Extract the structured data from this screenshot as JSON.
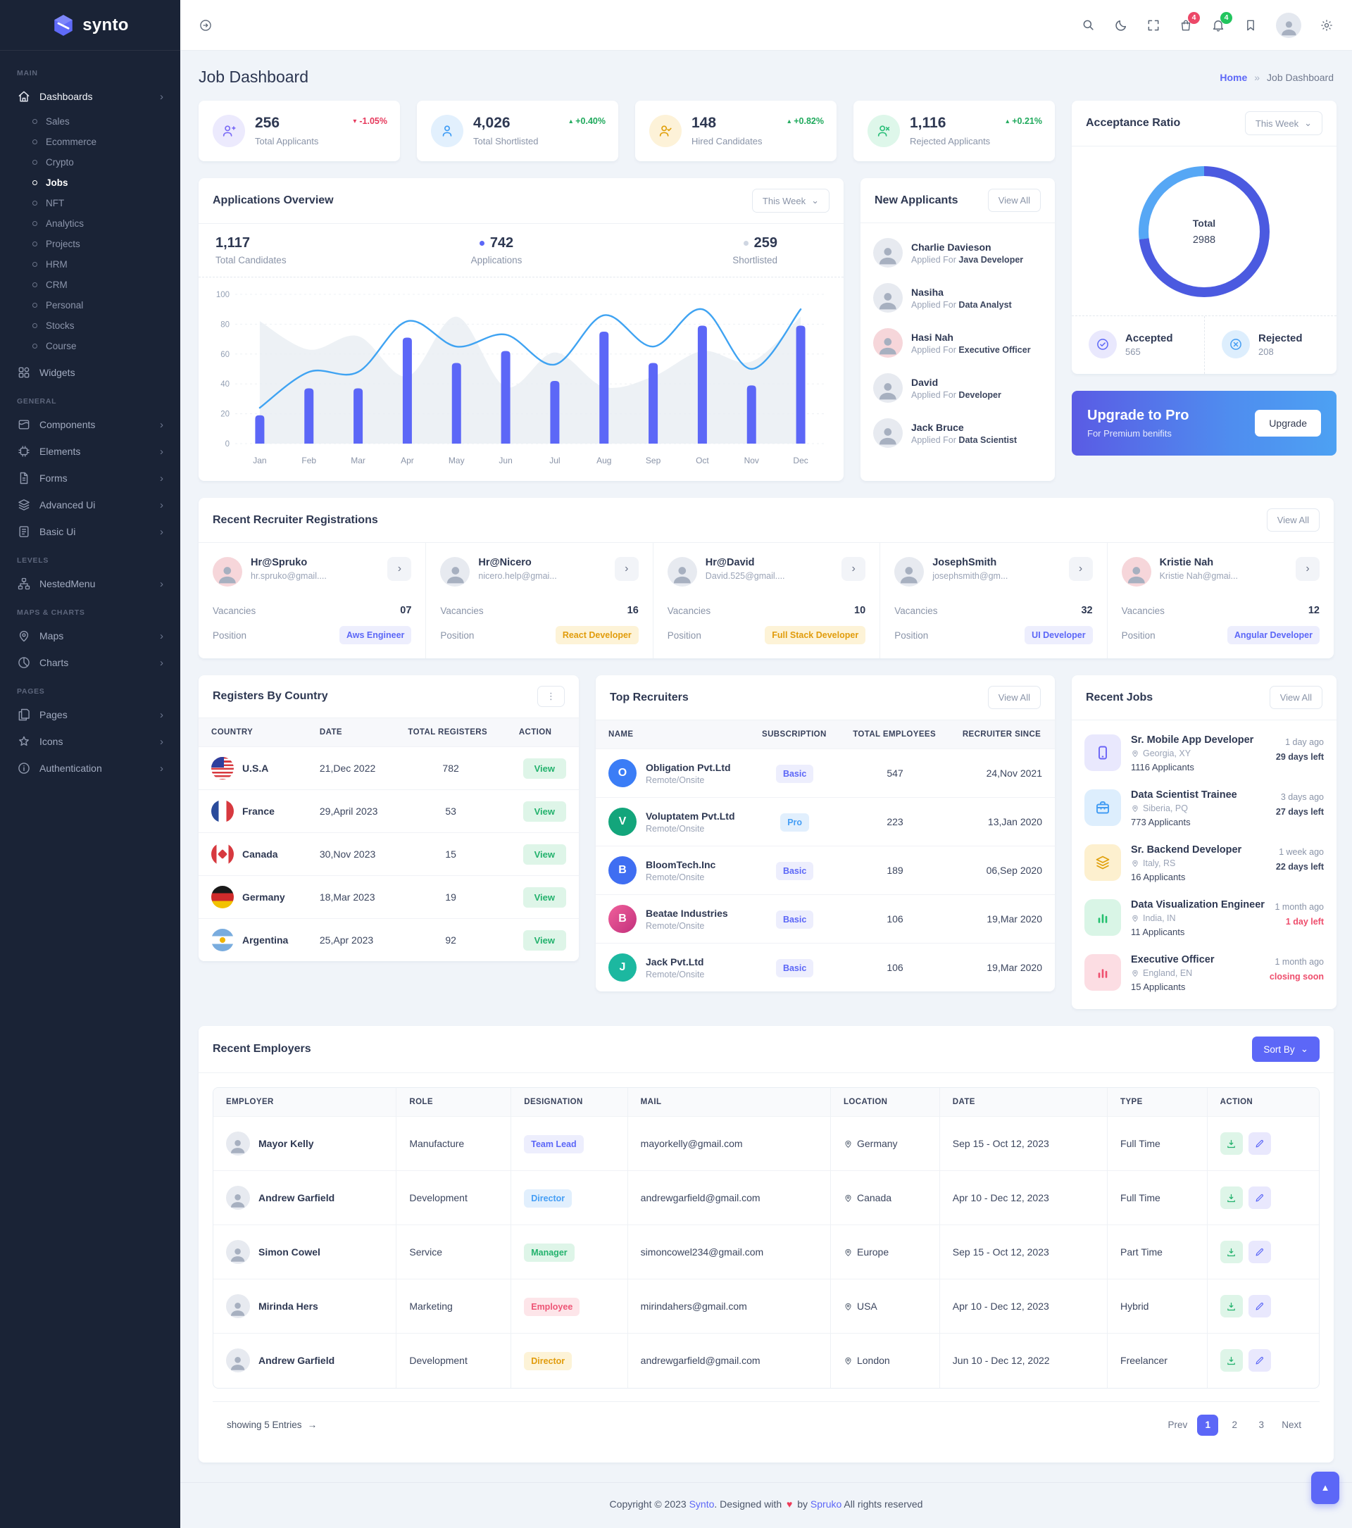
{
  "brand": {
    "name": "synto"
  },
  "icons": {
    "chevron_down": "⌄",
    "chevron_right": "›",
    "dots_vertical": "⋮",
    "arrow_right": "→",
    "scroll_top": "▲",
    "heart": "♥",
    "caret_up": "▴",
    "caret_down": "▾",
    "breadcrumb_sep": "»"
  },
  "navbar": {
    "cart_badge": "4",
    "bell_badge": "4"
  },
  "sidebar": {
    "section_main": "MAIN",
    "dashboards": "Dashboards",
    "dash_children": [
      "Sales",
      "Ecommerce",
      "Crypto",
      "Jobs",
      "NFT",
      "Analytics",
      "Projects",
      "HRM",
      "CRM",
      "Personal",
      "Stocks",
      "Course"
    ],
    "widgets": "Widgets",
    "section_general": "GENERAL",
    "general_items": [
      "Components",
      "Elements",
      "Forms",
      "Advanced Ui",
      "Basic Ui"
    ],
    "section_levels": "LEVELS",
    "levels_items": [
      "NestedMenu"
    ],
    "section_maps": "MAPS & CHARTS",
    "maps_items": [
      "Maps",
      "Charts"
    ],
    "section_pages": "PAGES",
    "pages_items": [
      "Pages",
      "Icons",
      "Authentication"
    ]
  },
  "header": {
    "title": "Job Dashboard",
    "breadcrumb_home": "Home",
    "breadcrumb_current": "Job Dashboard"
  },
  "stats": [
    {
      "value": "256",
      "label": "Total Applicants",
      "delta": "-1.05%"
    },
    {
      "value": "4,026",
      "label": "Total Shortlisted",
      "delta": "+0.40%"
    },
    {
      "value": "148",
      "label": "Hired Candidates",
      "delta": "+0.82%"
    },
    {
      "value": "1,116",
      "label": "Rejected Applicants",
      "delta": "+0.21%"
    }
  ],
  "apps_overview": {
    "title": "Applications Overview",
    "period": "This Week",
    "total_value": "1,117",
    "total_label": "Total Candidates",
    "apps_value": "742",
    "apps_label": "Applications",
    "short_value": "259",
    "short_label": "Shortlisted"
  },
  "chart_data": [
    {
      "type": "bar",
      "title": "Applications Overview",
      "categories": [
        "Jan",
        "Feb",
        "Mar",
        "Apr",
        "May",
        "Jun",
        "Jul",
        "Aug",
        "Sep",
        "Oct",
        "Nov",
        "Dec"
      ],
      "series": [
        {
          "name": "Applications",
          "type": "bar",
          "color": "#5c67f7",
          "values": [
            19,
            37,
            37,
            71,
            54,
            62,
            42,
            75,
            54,
            79,
            39,
            79
          ]
        },
        {
          "name": "Shortlisted",
          "type": "line",
          "color": "#3fa3f2",
          "values": [
            24,
            48,
            48,
            82,
            65,
            73,
            53,
            86,
            65,
            90,
            50,
            90
          ]
        },
        {
          "name": "Total Candidates",
          "type": "area",
          "color": "#e9edf3",
          "values": [
            82,
            63,
            72,
            45,
            85,
            38,
            61,
            38,
            45,
            62,
            55,
            85
          ]
        }
      ],
      "xlabel": "",
      "ylabel": "",
      "ylim": [
        0,
        100
      ],
      "yticks": [
        0,
        20,
        40,
        60,
        80,
        100
      ],
      "grid": true,
      "legend": "none"
    },
    {
      "type": "pie",
      "labels": [
        "Accepted",
        "Rejected"
      ],
      "values": [
        565,
        208
      ],
      "colors": [
        "#4b5ae0",
        "#56a7f5"
      ],
      "title": "Acceptance Ratio",
      "center_label": "Total",
      "center_value": "2988"
    }
  ],
  "new_applicants": {
    "title": "New Applicants",
    "view_all": "View All",
    "applied_for": "Applied For",
    "items": [
      {
        "name": "Charlie Davieson",
        "role": "Java Developer"
      },
      {
        "name": "Nasiha",
        "role": "Data Analyst"
      },
      {
        "name": "Hasi Nah",
        "role": "Executive Officer"
      },
      {
        "name": "David",
        "role": "Developer"
      },
      {
        "name": "Jack Bruce",
        "role": "Data Scientist"
      }
    ]
  },
  "acceptance": {
    "title": "Acceptance Ratio",
    "period": "This Week",
    "center_label": "Total",
    "center_value": "2988",
    "accepted_label": "Accepted",
    "accepted_value": "565",
    "rejected_label": "Rejected",
    "rejected_value": "208"
  },
  "upgrade": {
    "title": "Upgrade to Pro",
    "subtitle": "For Premium benifits",
    "button": "Upgrade"
  },
  "recruiters": {
    "title": "Recent Recruiter Registrations",
    "view_all": "View All",
    "vacancies_label": "Vacancies",
    "position_label": "Position",
    "cards": [
      {
        "name": "Hr@Spruko",
        "email": "hr.spruko@gmail....",
        "vacancies": "07",
        "position": "Aws Engineer"
      },
      {
        "name": "Hr@Nicero",
        "email": "nicero.help@gmai...",
        "vacancies": "16",
        "position": "React Developer"
      },
      {
        "name": "Hr@David",
        "email": "David.525@gmail....",
        "vacancies": "10",
        "position": "Full Stack Developer"
      },
      {
        "name": "JosephSmith",
        "email": "josephsmith@gm...",
        "vacancies": "32",
        "position": "UI Developer"
      },
      {
        "name": "Kristie Nah",
        "email": "Kristie Nah@gmai...",
        "vacancies": "12",
        "position": "Angular Developer"
      }
    ]
  },
  "registers": {
    "title": "Registers By Country",
    "col_country": "COUNTRY",
    "col_date": "DATE",
    "col_total": "TOTAL REGISTERS",
    "col_action": "ACTION",
    "view_label": "View",
    "rows": [
      {
        "country": "U.S.A",
        "date": "21,Dec 2022",
        "total": "782"
      },
      {
        "country": "France",
        "date": "29,April 2023",
        "total": "53"
      },
      {
        "country": "Canada",
        "date": "30,Nov 2023",
        "total": "15"
      },
      {
        "country": "Germany",
        "date": "18,Mar 2023",
        "total": "19"
      },
      {
        "country": "Argentina",
        "date": "25,Apr 2023",
        "total": "92"
      }
    ]
  },
  "top_recruiters": {
    "title": "Top Recruiters",
    "view_all": "View All",
    "col_name": "NAME",
    "col_sub": "SUBSCRIPTION",
    "col_emp": "TOTAL EMPLOYEES",
    "col_since": "RECRUITER SINCE",
    "rows": [
      {
        "name": "Obligation Pvt.Ltd",
        "mode": "Remote/Onsite",
        "plan": "Basic",
        "employees": "547",
        "since": "24,Nov 2021",
        "initial": "O"
      },
      {
        "name": "Voluptatem Pvt.Ltd",
        "mode": "Remote/Onsite",
        "plan": "Pro",
        "employees": "223",
        "since": "13,Jan 2020",
        "initial": "V"
      },
      {
        "name": "BloomTech.Inc",
        "mode": "Remote/Onsite",
        "plan": "Basic",
        "employees": "189",
        "since": "06,Sep 2020",
        "initial": "B"
      },
      {
        "name": "Beatae Industries",
        "mode": "Remote/Onsite",
        "plan": "Basic",
        "employees": "106",
        "since": "19,Mar 2020",
        "initial": "B"
      },
      {
        "name": "Jack Pvt.Ltd",
        "mode": "Remote/Onsite",
        "plan": "Basic",
        "employees": "106",
        "since": "19,Mar 2020",
        "initial": "J"
      }
    ]
  },
  "recent_jobs": {
    "title": "Recent Jobs",
    "view_all": "View All",
    "items": [
      {
        "title": "Sr. Mobile App Developer",
        "location": "Georgia, XY",
        "applicants": "1116 Applicants",
        "posted": "1 day ago",
        "left": "29 days left"
      },
      {
        "title": "Data Scientist Trainee",
        "location": "Siberia, PQ",
        "applicants": "773 Applicants",
        "posted": "3 days ago",
        "left": "27 days left"
      },
      {
        "title": "Sr. Backend Developer",
        "location": "Italy, RS",
        "applicants": "16 Applicants",
        "posted": "1 week ago",
        "left": "22 days left"
      },
      {
        "title": "Data Visualization Engineer",
        "location": "India, IN",
        "applicants": "11 Applicants",
        "posted": "1 month ago",
        "left": "1 day left"
      },
      {
        "title": "Executive Officer",
        "location": "England, EN",
        "applicants": "15 Applicants",
        "posted": "1 month ago",
        "left": "closing soon"
      }
    ]
  },
  "employers": {
    "title": "Recent Employers",
    "sort_by": "Sort By",
    "col_employer": "EMPLOYER",
    "col_role": "ROLE",
    "col_designation": "DESIGNATION",
    "col_mail": "MAIL",
    "col_location": "LOCATION",
    "col_date": "DATE",
    "col_type": "TYPE",
    "col_action": "ACTION",
    "rows": [
      {
        "name": "Mayor Kelly",
        "role": "Manufacture",
        "designation": "Team Lead",
        "mail": "mayorkelly@gmail.com",
        "location": "Germany",
        "date": "Sep 15 - Oct 12, 2023",
        "type": "Full Time"
      },
      {
        "name": "Andrew Garfield",
        "role": "Development",
        "designation": "Director",
        "mail": "andrewgarfield@gmail.com",
        "location": "Canada",
        "date": "Apr 10 - Dec 12, 2023",
        "type": "Full Time"
      },
      {
        "name": "Simon Cowel",
        "role": "Service",
        "designation": "Manager",
        "mail": "simoncowel234@gmail.com",
        "location": "Europe",
        "date": "Sep 15 - Oct 12, 2023",
        "type": "Part Time"
      },
      {
        "name": "Mirinda Hers",
        "role": "Marketing",
        "designation": "Employee",
        "mail": "mirindahers@gmail.com",
        "location": "USA",
        "date": "Apr 10 - Dec 12, 2023",
        "type": "Hybrid"
      },
      {
        "name": "Andrew Garfield",
        "role": "Development",
        "designation": "Director",
        "mail": "andrewgarfield@gmail.com",
        "location": "London",
        "date": "Jun 10 - Dec 12, 2022",
        "type": "Freelancer"
      }
    ],
    "showing": "showing 5 Entries",
    "prev": "Prev",
    "pages": [
      "1",
      "2",
      "3"
    ],
    "next": "Next"
  },
  "footer": {
    "c1": "Copyright © 2023",
    "brand": "Synto",
    "c2": ". Designed with",
    "c3": "by",
    "brand2": "Spruko",
    "c4": "All rights reserved"
  },
  "colors": {
    "primary": "#5c67f7",
    "line": "#3fa3f2",
    "accepted": "#4b5ae0",
    "rejected": "#56a7f5",
    "success": "#23b26d",
    "danger": "#ee5576",
    "warning": "#e19c0c"
  }
}
